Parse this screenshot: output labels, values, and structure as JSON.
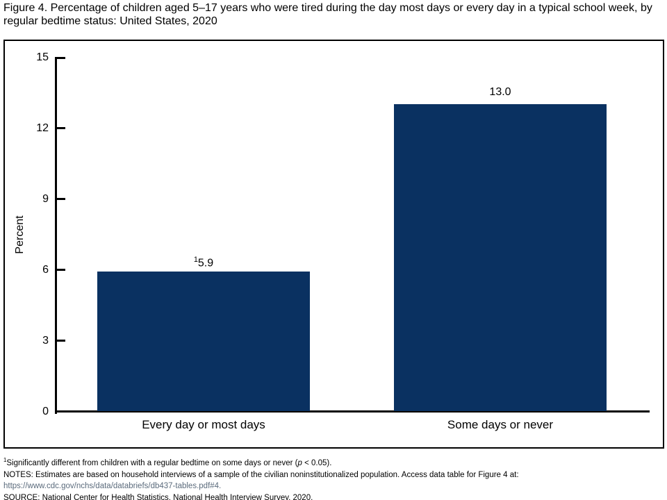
{
  "title": "Figure 4. Percentage of children aged 5–17 years who were tired during the day most days or every day in a typical school week, by regular bedtime status: United States, 2020",
  "colors": {
    "bar": "#0a3161",
    "axis": "#000000",
    "link": "#5b6b7c"
  },
  "chart_data": {
    "type": "bar",
    "title": "Figure 4. Percentage of children aged 5–17 years who were tired during the day most days or every day in a typical school week, by regular bedtime status: United States, 2020",
    "categories": [
      "Every day or most days",
      "Some days or never"
    ],
    "values": [
      5.9,
      13.0
    ],
    "bars": [
      {
        "category": "Every day or most days",
        "value": 5.9,
        "value_label": "5.9",
        "label_sup": "1"
      },
      {
        "category": "Some days or never",
        "value": 13.0,
        "value_label": "13.0",
        "label_sup": ""
      }
    ],
    "xlabel": "",
    "ylabel": "Percent",
    "ylim": [
      0,
      15
    ],
    "yticks": [
      0,
      3,
      6,
      9,
      12,
      15
    ],
    "grid": false,
    "legend": null,
    "bar_color": "#0a3161"
  },
  "footnotes": {
    "fn1": {
      "sup": "1",
      "pre": "Significantly different from children with a regular bedtime on some days or never (",
      "italic": "p",
      "post": " < 0.05)."
    },
    "notes": "NOTES: Estimates are based on household interviews of a sample of the civilian noninstitutionalized population. Access data table for Figure 4 at:",
    "url": "https://www.cdc.gov/nchs/data/databriefs/db437-tables.pdf#4.",
    "source": "SOURCE: National Center for Health Statistics, National Health Interview Survey, 2020."
  }
}
